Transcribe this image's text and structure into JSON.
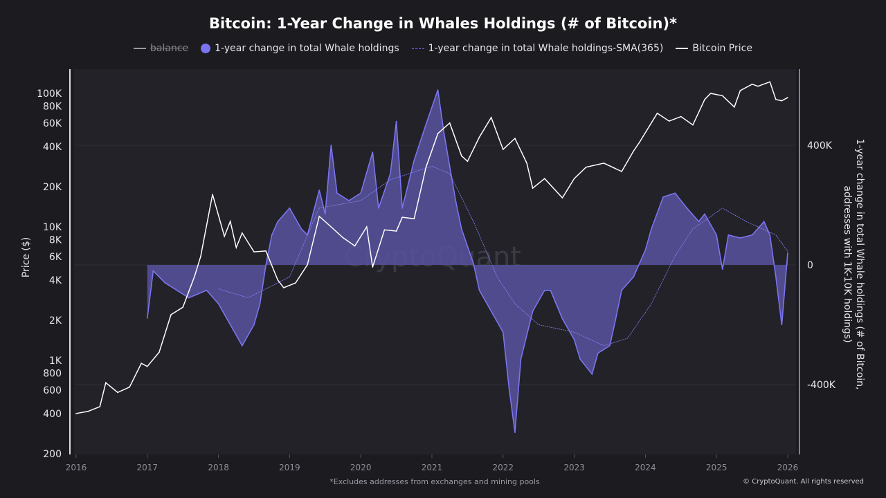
{
  "chart_data": {
    "type": "area",
    "title": "Bitcoin: 1-Year Change in Whales Holdings (# of Bitcoin)*",
    "legend": [
      {
        "label": "balance",
        "hidden": true,
        "color": "#999999"
      },
      {
        "label": "1-year change in total Whale holdings",
        "color": "#7b74f0"
      },
      {
        "label": "1-year change in total Whale holdings-SMA(365)",
        "color": "#7b74f0"
      },
      {
        "label": "Bitcoin Price",
        "color": "#ffffff"
      }
    ],
    "legend_position": "top",
    "x_ticks": [
      "2016",
      "2017",
      "2018",
      "2019",
      "2020",
      "2021",
      "2022",
      "2023",
      "2024",
      "2025",
      "2026"
    ],
    "left_axis": {
      "label": "Price ($)",
      "scale": "log",
      "range": [
        200,
        150000
      ],
      "ticks": [
        "200",
        "400",
        "600",
        "800",
        "1K",
        "2K",
        "4K",
        "6K",
        "8K",
        "10K",
        "20K",
        "40K",
        "60K",
        "80K",
        "100K"
      ],
      "tick_values": [
        200,
        400,
        600,
        800,
        1000,
        2000,
        4000,
        6000,
        8000,
        10000,
        20000,
        40000,
        60000,
        80000,
        100000
      ]
    },
    "right_axis": {
      "label": "1-year change in total Whale holdings (# of Bitcoin, addresses with 1K-10K holdings)",
      "range": [
        -630000,
        640000
      ],
      "ticks": [
        "-400K",
        "0",
        "400K"
      ],
      "tick_values": [
        -400000,
        0,
        400000
      ]
    },
    "grid": true,
    "series": [
      {
        "name": "Bitcoin Price",
        "color": "#ffffff",
        "points": [
          [
            "2016-01",
            400
          ],
          [
            "2016-03",
            415
          ],
          [
            "2016-05",
            450
          ],
          [
            "2016-06",
            680
          ],
          [
            "2016-08",
            575
          ],
          [
            "2016-10",
            630
          ],
          [
            "2016-12",
            950
          ],
          [
            "2017-01",
            900
          ],
          [
            "2017-03",
            1150
          ],
          [
            "2017-05",
            2200
          ],
          [
            "2017-07",
            2500
          ],
          [
            "2017-09",
            4300
          ],
          [
            "2017-10",
            6000
          ],
          [
            "2017-12",
            17500
          ],
          [
            "2018-02",
            8500
          ],
          [
            "2018-03",
            11000
          ],
          [
            "2018-04",
            7000
          ],
          [
            "2018-05",
            9000
          ],
          [
            "2018-07",
            6500
          ],
          [
            "2018-09",
            6600
          ],
          [
            "2018-11",
            4000
          ],
          [
            "2018-12",
            3500
          ],
          [
            "2019-02",
            3800
          ],
          [
            "2019-04",
            5200
          ],
          [
            "2019-06",
            12000
          ],
          [
            "2019-08",
            10000
          ],
          [
            "2019-10",
            8300
          ],
          [
            "2019-12",
            7200
          ],
          [
            "2020-02",
            10000
          ],
          [
            "2020-03",
            5000
          ],
          [
            "2020-05",
            9500
          ],
          [
            "2020-07",
            9300
          ],
          [
            "2020-08",
            11800
          ],
          [
            "2020-10",
            11500
          ],
          [
            "2020-12",
            28000
          ],
          [
            "2021-02",
            50000
          ],
          [
            "2021-04",
            60000
          ],
          [
            "2021-06",
            34000
          ],
          [
            "2021-07",
            31000
          ],
          [
            "2021-09",
            47000
          ],
          [
            "2021-11",
            66000
          ],
          [
            "2022-01",
            38000
          ],
          [
            "2022-03",
            46000
          ],
          [
            "2022-05",
            30000
          ],
          [
            "2022-06",
            19500
          ],
          [
            "2022-08",
            23000
          ],
          [
            "2022-11",
            16500
          ],
          [
            "2023-01",
            23000
          ],
          [
            "2023-03",
            28000
          ],
          [
            "2023-06",
            30000
          ],
          [
            "2023-09",
            26000
          ],
          [
            "2023-11",
            37000
          ],
          [
            "2023-12",
            43000
          ],
          [
            "2024-03",
            71000
          ],
          [
            "2024-05",
            62000
          ],
          [
            "2024-07",
            67000
          ],
          [
            "2024-09",
            58000
          ],
          [
            "2024-11",
            90000
          ],
          [
            "2024-12",
            100000
          ],
          [
            "2025-02",
            96000
          ],
          [
            "2025-04",
            79000
          ],
          [
            "2025-05",
            105000
          ],
          [
            "2025-07",
            117000
          ],
          [
            "2025-08",
            113000
          ],
          [
            "2025-10",
            122000
          ],
          [
            "2025-11",
            90000
          ],
          [
            "2025-12",
            88000
          ],
          [
            "2026-01",
            93000
          ]
        ]
      },
      {
        "name": "1-year change in total Whale holdings",
        "color": "#7b74f0",
        "points": [
          [
            "2017-01",
            -178000
          ],
          [
            "2017-02",
            -20000
          ],
          [
            "2017-04",
            -60000
          ],
          [
            "2017-06",
            -85000
          ],
          [
            "2017-08",
            -110000
          ],
          [
            "2017-11",
            -85000
          ],
          [
            "2018-01",
            -130000
          ],
          [
            "2018-03",
            -200000
          ],
          [
            "2018-05",
            -270000
          ],
          [
            "2018-07",
            -200000
          ],
          [
            "2018-08",
            -130000
          ],
          [
            "2018-09",
            0
          ],
          [
            "2018-10",
            100000
          ],
          [
            "2018-11",
            145000
          ],
          [
            "2019-01",
            190000
          ],
          [
            "2019-03",
            120000
          ],
          [
            "2019-04",
            100000
          ],
          [
            "2019-06",
            250000
          ],
          [
            "2019-07",
            170000
          ],
          [
            "2019-08",
            400000
          ],
          [
            "2019-09",
            240000
          ],
          [
            "2019-11",
            215000
          ],
          [
            "2020-01",
            240000
          ],
          [
            "2020-03",
            377000
          ],
          [
            "2020-04",
            190000
          ],
          [
            "2020-06",
            305000
          ],
          [
            "2020-07",
            480000
          ],
          [
            "2020-08",
            190000
          ],
          [
            "2020-10",
            350000
          ],
          [
            "2020-12",
            470000
          ],
          [
            "2021-02",
            585000
          ],
          [
            "2021-03",
            445000
          ],
          [
            "2021-05",
            215000
          ],
          [
            "2021-06",
            120000
          ],
          [
            "2021-08",
            5000
          ],
          [
            "2021-09",
            -85000
          ],
          [
            "2021-11",
            -155000
          ],
          [
            "2022-01",
            -225000
          ],
          [
            "2022-02",
            -410000
          ],
          [
            "2022-03",
            -560000
          ],
          [
            "2022-04",
            -315000
          ],
          [
            "2022-06",
            -155000
          ],
          [
            "2022-08",
            -85000
          ],
          [
            "2022-09",
            -85000
          ],
          [
            "2022-11",
            -180000
          ],
          [
            "2023-01",
            -250000
          ],
          [
            "2023-02",
            -315000
          ],
          [
            "2023-04",
            -365000
          ],
          [
            "2023-05",
            -295000
          ],
          [
            "2023-07",
            -270000
          ],
          [
            "2023-08",
            -180000
          ],
          [
            "2023-09",
            -85000
          ],
          [
            "2023-11",
            -40000
          ],
          [
            "2024-01",
            50000
          ],
          [
            "2024-02",
            120000
          ],
          [
            "2024-04",
            227000
          ],
          [
            "2024-06",
            240000
          ],
          [
            "2024-08",
            190000
          ],
          [
            "2024-10",
            145000
          ],
          [
            "2024-11",
            170000
          ],
          [
            "2025-01",
            100000
          ],
          [
            "2025-02",
            -15000
          ],
          [
            "2025-03",
            100000
          ],
          [
            "2025-05",
            90000
          ],
          [
            "2025-07",
            100000
          ],
          [
            "2025-09",
            145000
          ],
          [
            "2025-10",
            100000
          ],
          [
            "2025-11",
            -40000
          ],
          [
            "2025-12",
            -200000
          ],
          [
            "2026-01",
            40000
          ]
        ]
      },
      {
        "name": "1-year change in total Whale holdings-SMA(365)",
        "color": "#7b74f0",
        "dashed": true,
        "points": [
          [
            "2018-01",
            -80000
          ],
          [
            "2018-06",
            -110000
          ],
          [
            "2019-01",
            -40000
          ],
          [
            "2019-06",
            190000
          ],
          [
            "2020-01",
            215000
          ],
          [
            "2020-06",
            285000
          ],
          [
            "2021-01",
            330000
          ],
          [
            "2021-04",
            305000
          ],
          [
            "2021-08",
            145000
          ],
          [
            "2021-12",
            -40000
          ],
          [
            "2022-03",
            -130000
          ],
          [
            "2022-07",
            -200000
          ],
          [
            "2023-01",
            -225000
          ],
          [
            "2023-06",
            -270000
          ],
          [
            "2023-10",
            -245000
          ],
          [
            "2024-02",
            -130000
          ],
          [
            "2024-06",
            30000
          ],
          [
            "2024-09",
            120000
          ],
          [
            "2025-02",
            190000
          ],
          [
            "2025-06",
            145000
          ],
          [
            "2025-11",
            100000
          ],
          [
            "2026-01",
            45000
          ]
        ]
      }
    ],
    "watermark": "CryptoQuant",
    "footnote": "*Excludes addresses from exchanges and mining pools",
    "copyright": "© CryptoQuant. All rights reserved"
  }
}
